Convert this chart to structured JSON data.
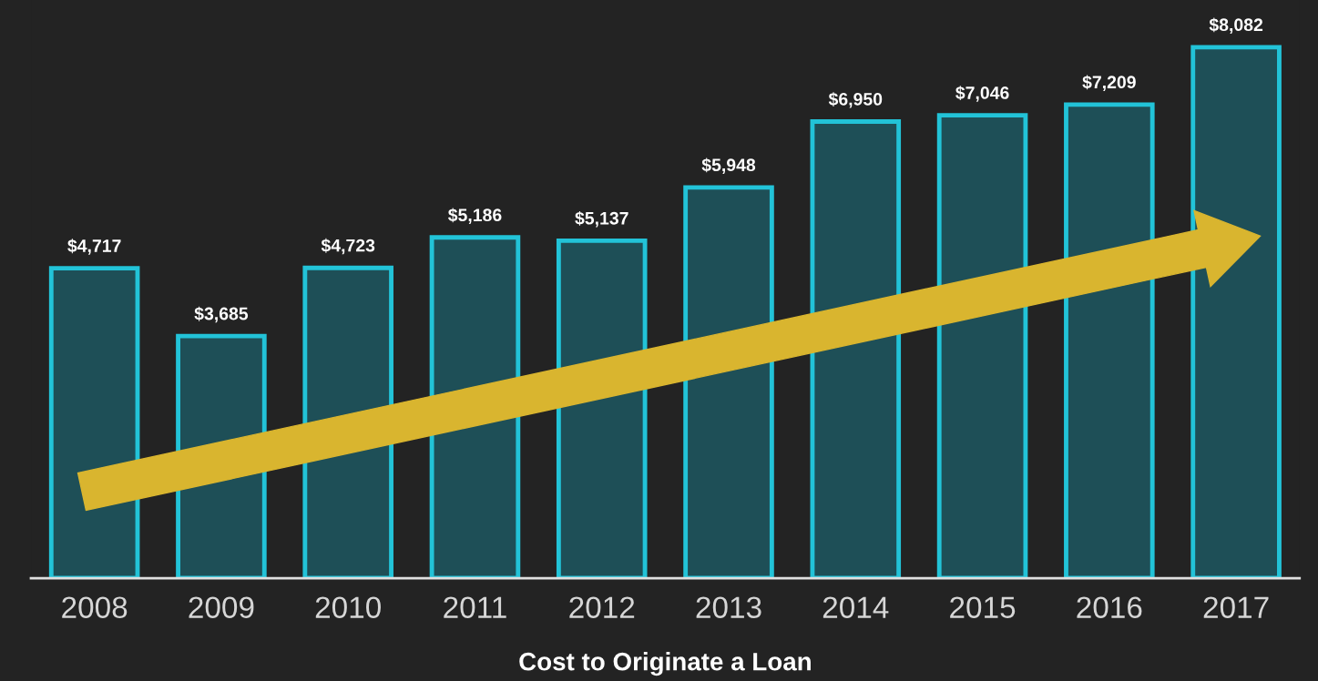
{
  "chart_data": {
    "type": "bar",
    "xlabel": "Cost to Originate a Loan",
    "categories": [
      "2008",
      "2009",
      "2010",
      "2011",
      "2012",
      "2013",
      "2014",
      "2015",
      "2016",
      "2017"
    ],
    "values": [
      4717,
      3685,
      4723,
      5186,
      5137,
      5948,
      6950,
      7046,
      7209,
      8082
    ],
    "value_labels": [
      "$4,717",
      "$3,685",
      "$4,723",
      "$5,186",
      "$5,137",
      "$5,948",
      "$6,950",
      "$7,046",
      "$7,209",
      "$8,082"
    ],
    "color": "#1e4f57",
    "ylim": [
      0,
      8800
    ],
    "tick_labels": "x",
    "grid": false
  }
}
